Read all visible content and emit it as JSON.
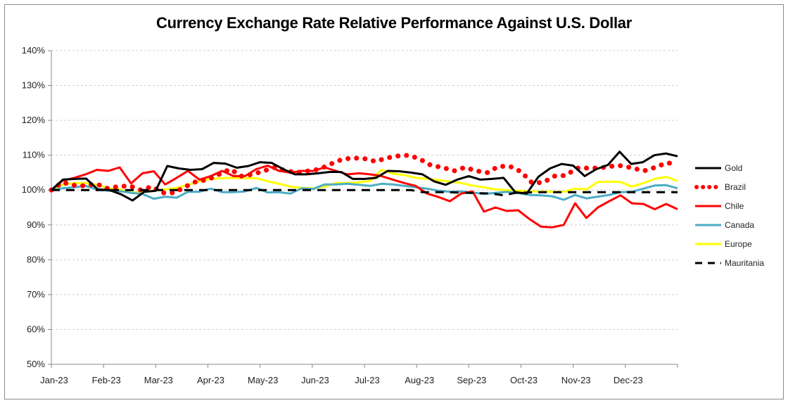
{
  "chart_data": {
    "type": "line",
    "title": "Currency Exchange Rate Relative Performance Against U.S. Dollar",
    "xlabel": "",
    "ylabel": "",
    "ylim": [
      50,
      140
    ],
    "yticks": [
      "50%",
      "60%",
      "70%",
      "80%",
      "90%",
      "100%",
      "110%",
      "120%",
      "130%",
      "140%"
    ],
    "xticks": [
      "Jan-23",
      "Feb-23",
      "Mar-23",
      "Apr-23",
      "May-23",
      "Jun-23",
      "Jul-23",
      "Aug-23",
      "Sep-23",
      "Oct-23",
      "Nov-23",
      "Dec-23"
    ],
    "x_unit": "weeks since Jan-23",
    "grid": "horizontal dashed",
    "legend": "right",
    "series": [
      {
        "name": "Gold",
        "color": "#000000",
        "style": "solid",
        "values": [
          100,
          103,
          103.2,
          103.3,
          100.2,
          100,
          98.8,
          97,
          99.5,
          99.8,
          106.9,
          106.2,
          105.8,
          106,
          107.8,
          107.6,
          106.4,
          106.9,
          108,
          107.8,
          106,
          104.5,
          104.5,
          104.8,
          105.2,
          105.2,
          103.2,
          103.2,
          103.5,
          105.5,
          105.4,
          105,
          104.5,
          102.5,
          101.5,
          103,
          104,
          103,
          103.2,
          103.5,
          99.4,
          99,
          103.8,
          106.2,
          107.5,
          107,
          104,
          106,
          107.2,
          111,
          107.5,
          108,
          110,
          110.5,
          109.7
        ]
      },
      {
        "name": "Brazil",
        "color": "#ff0000",
        "style": "dotted",
        "values": [
          100,
          102.2,
          101.4,
          101.2,
          101.8,
          100.5,
          101,
          101.2,
          100,
          101,
          99.2,
          99.2,
          101,
          102.5,
          103,
          104.5,
          106,
          104,
          104.5,
          105.5,
          106.5,
          105.5,
          105,
          105.5,
          106,
          107.5,
          108.8,
          109.2,
          109,
          108.2,
          109.2,
          109.8,
          110,
          108.8,
          107,
          106.5,
          105.5,
          106.5,
          105.5,
          105,
          106.8,
          106.8,
          105.3,
          102,
          102.2,
          104,
          104.2,
          106.3,
          106.3,
          106.3,
          106.8,
          107,
          106.3,
          105.5,
          106.5,
          107.8,
          107.5
        ]
      },
      {
        "name": "Chile",
        "color": "#ff0000",
        "style": "solid",
        "values": [
          100,
          102.7,
          103.5,
          104.5,
          105.8,
          105.5,
          106.5,
          101.9,
          104.8,
          105.4,
          101.6,
          103.5,
          105.5,
          103,
          104,
          105.5,
          104,
          104,
          106,
          107,
          105.5,
          105,
          105.5,
          105.5,
          106.5,
          105.5,
          104.5,
          104.8,
          104.5,
          104,
          103,
          102,
          101.2,
          99,
          98,
          96.8,
          99,
          99.6,
          93.8,
          95,
          94,
          94.2,
          91.7,
          89.5,
          89.3,
          90,
          96.2,
          92,
          95,
          96.8,
          98.5,
          96.2,
          96,
          94.5,
          96,
          94.5
        ]
      },
      {
        "name": "Canada",
        "color": "#4bacc6",
        "style": "solid",
        "values": [
          100,
          100.5,
          100.8,
          101.2,
          100.2,
          99.8,
          99.7,
          99.2,
          98.9,
          97.5,
          98.1,
          97.8,
          99.5,
          99.5,
          100.4,
          99.4,
          99.4,
          99.6,
          100.6,
          99.3,
          99.4,
          99,
          100.5,
          100.3,
          101.6,
          101.6,
          101.8,
          101.5,
          101.2,
          101.8,
          101.6,
          101.2,
          100.8,
          100.4,
          99.8,
          99.5,
          99.6,
          99.3,
          98.9,
          99.2,
          99.5,
          99.1,
          98.6,
          98.5,
          98.2,
          97.2,
          98.6,
          97.6,
          98.1,
          98.6,
          99.4,
          99.5,
          100.4,
          101.3,
          101.4,
          100.5
        ]
      },
      {
        "name": "Europe",
        "color": "#ffff00",
        "style": "solid",
        "values": [
          100,
          101.5,
          102,
          102,
          101.5,
          100.5,
          100.2,
          99.2,
          99.5,
          99.8,
          100.2,
          100.6,
          101.5,
          102.5,
          103.2,
          103.4,
          103.5,
          103.4,
          103.4,
          102.5,
          101.8,
          101,
          100.6,
          100.5,
          101,
          102,
          102,
          102.2,
          102.6,
          105.8,
          104.7,
          104.3,
          103.5,
          103.2,
          102.8,
          102.4,
          102,
          101.3,
          100.8,
          100.2,
          100,
          99.8,
          99.6,
          99.6,
          99.5,
          99.5,
          100.4,
          100.2,
          102.3,
          102.4,
          102.3,
          101,
          102,
          103.2,
          103.8,
          102.6
        ]
      },
      {
        "name": "Mauritania",
        "color": "#000000",
        "style": "dashed",
        "values": [
          100,
          100,
          100,
          100,
          100,
          100,
          100,
          100,
          100,
          100,
          100,
          100,
          100,
          100,
          100,
          100,
          100,
          100,
          100,
          100,
          100,
          100,
          100,
          100,
          100,
          100,
          100,
          100,
          100,
          100,
          100,
          100,
          99.4,
          99.4,
          99.4,
          99.3,
          99.2,
          99.1,
          99,
          98.5,
          99.2,
          99.3,
          99.4,
          99.4,
          99.4,
          99.4,
          99.4,
          99.4,
          99.4,
          99.4,
          99.4,
          99.4,
          99.4,
          99.4,
          99.4
        ]
      }
    ]
  }
}
